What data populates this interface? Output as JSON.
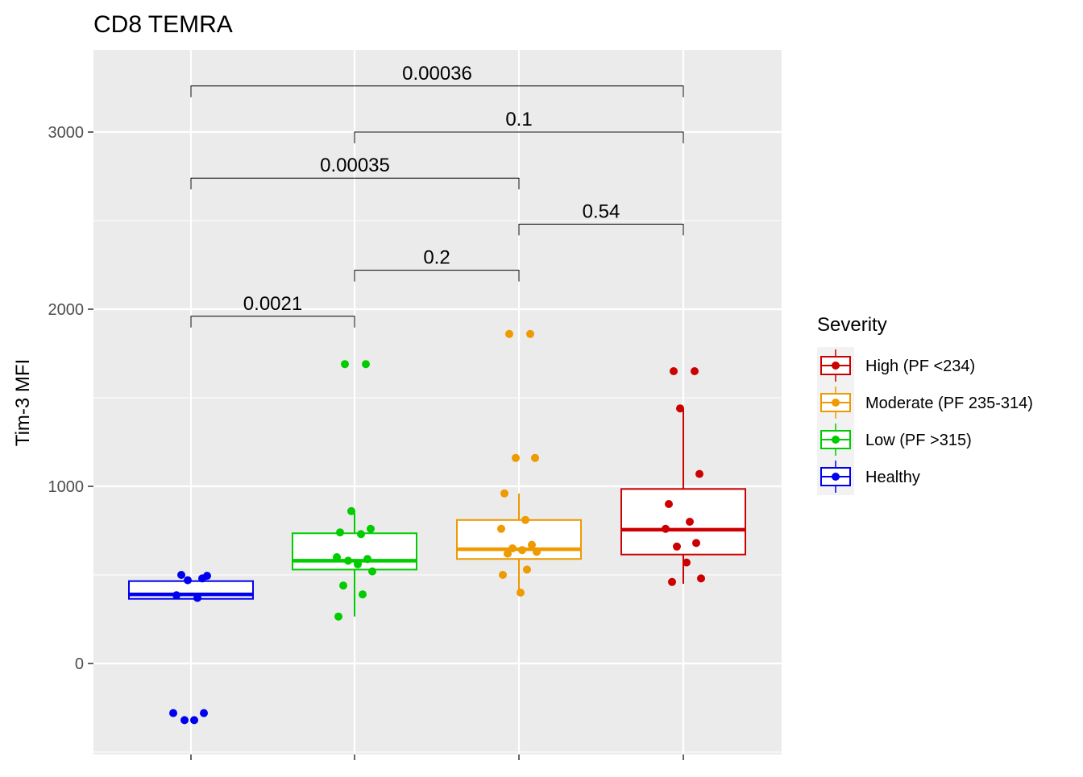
{
  "chart_data": {
    "type": "box",
    "title": "CD8 TEMRA",
    "ylabel": "Tim-3 MFI",
    "xlabel": "",
    "ylim": [
      -500,
      3400
    ],
    "yticks": [
      0,
      1000,
      2000,
      3000
    ],
    "categories": [
      "Healthy",
      "Low (PF >315)",
      "Moderate (PF 235-314)",
      "High (PF <234)"
    ],
    "legend": {
      "title": "Severity",
      "placement": "right",
      "entries": [
        "High (PF <234)",
        "Moderate (PF 235-314)",
        "Low (PF >315)",
        "Healthy"
      ]
    },
    "colors": {
      "Healthy": "#0000ee",
      "Low (PF >315)": "#00cc00",
      "Moderate (PF 235-314)": "#ee9a00",
      "High (PF <234)": "#cc0000"
    },
    "boxes": [
      {
        "group": "Healthy",
        "q1": 365,
        "median": 390,
        "q3": 465,
        "whisker_low": 365,
        "whisker_high": 465
      },
      {
        "group": "Low (PF >315)",
        "q1": 530,
        "median": 580,
        "q3": 735,
        "whisker_low": 265,
        "whisker_high": 850
      },
      {
        "group": "Moderate (PF 235-314)",
        "q1": 590,
        "median": 645,
        "q3": 810,
        "whisker_low": 400,
        "whisker_high": 960
      },
      {
        "group": "High (PF <234)",
        "q1": 615,
        "median": 755,
        "q3": 985,
        "whisker_low": 450,
        "whisker_high": 1440
      }
    ],
    "points": [
      {
        "group": "Healthy",
        "values": [
          500,
          480,
          470,
          495,
          385,
          370,
          -280,
          -280,
          -320,
          -320
        ]
      },
      {
        "group": "Low (PF >315)",
        "values": [
          1690,
          1690,
          860,
          760,
          740,
          730,
          600,
          590,
          580,
          560,
          520,
          440,
          390,
          265
        ]
      },
      {
        "group": "Moderate (PF 235-314)",
        "values": [
          1860,
          1860,
          1160,
          1160,
          960,
          810,
          760,
          670,
          650,
          640,
          630,
          620,
          530,
          500,
          400
        ]
      },
      {
        "group": "High (PF <234)",
        "values": [
          1650,
          1650,
          1440,
          1070,
          900,
          800,
          760,
          680,
          660,
          570,
          480,
          460
        ]
      }
    ],
    "comparisons": [
      {
        "groups": [
          "Healthy",
          "Low (PF >315)"
        ],
        "p": "0.0021",
        "bracket_y": 1960
      },
      {
        "groups": [
          "Low (PF >315)",
          "Moderate (PF 235-314)"
        ],
        "p": "0.2",
        "bracket_y": 2220
      },
      {
        "groups": [
          "Moderate (PF 235-314)",
          "High (PF <234)"
        ],
        "p": "0.54",
        "bracket_y": 2480
      },
      {
        "groups": [
          "Healthy",
          "Moderate (PF 235-314)"
        ],
        "p": "0.00035",
        "bracket_y": 2740
      },
      {
        "groups": [
          "Low (PF >315)",
          "High (PF <234)"
        ],
        "p": "0.1",
        "bracket_y": 3000
      },
      {
        "groups": [
          "Healthy",
          "High (PF <234)"
        ],
        "p": "0.00036",
        "bracket_y": 3260
      }
    ]
  }
}
